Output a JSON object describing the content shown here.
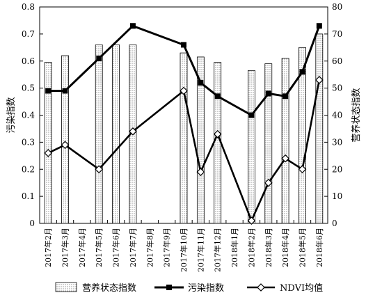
{
  "chart_data": {
    "type": "bar",
    "categories": [
      "2017年2月",
      "2017年3月",
      "2017年4月",
      "2017年5月",
      "2017年6月",
      "2017年7月",
      "2017年8月",
      "2017年9月",
      "2017年10月",
      "2017年11月",
      "2017年12月",
      "2018年1月",
      "2018年2月",
      "2018年3月",
      "2018年4月",
      "2018年5月",
      "2018年6月"
    ],
    "ylabel_left": "污染指数",
    "ylabel_right": "营养状态指数",
    "ylim_left": [
      0,
      0.8
    ],
    "ylim_right": [
      0,
      80
    ],
    "yticks_left": [
      "0",
      "0.1",
      "0.2",
      "0.3",
      "0.4",
      "0.5",
      "0.6",
      "0.7",
      "0.8"
    ],
    "yticks_right": [
      "0",
      "10",
      "20",
      "30",
      "40",
      "50",
      "60",
      "70",
      "80"
    ],
    "legend_position": "bottom",
    "grid": false,
    "series": [
      {
        "name": "营养状态指数",
        "type": "bar",
        "axis": "right",
        "pattern": "dotted",
        "values": [
          59.5,
          62,
          null,
          66,
          66,
          66,
          null,
          null,
          63,
          61.5,
          59.5,
          null,
          56.5,
          59,
          61,
          65,
          70
        ]
      },
      {
        "name": "污染指数",
        "type": "line",
        "axis": "left",
        "marker": "square",
        "color": "#000000",
        "values": [
          0.49,
          0.49,
          null,
          0.61,
          null,
          0.73,
          null,
          null,
          0.66,
          0.52,
          0.47,
          null,
          0.4,
          0.48,
          0.47,
          0.56,
          0.73
        ]
      },
      {
        "name": "NDVI均值",
        "type": "line",
        "axis": "left",
        "marker": "diamond",
        "color": "#000000",
        "values": [
          0.26,
          0.29,
          null,
          0.2,
          null,
          0.34,
          null,
          null,
          0.49,
          0.19,
          0.33,
          null,
          0.01,
          0.15,
          0.24,
          0.2,
          0.53
        ]
      }
    ]
  }
}
